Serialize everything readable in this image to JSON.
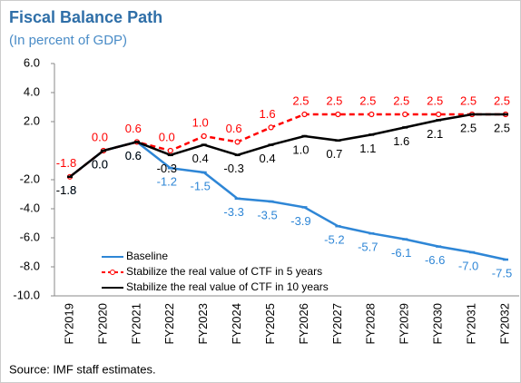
{
  "chart_data": {
    "type": "line",
    "title": "Fiscal Balance Path",
    "subtitle": "(In percent of GDP)",
    "source": "Source: IMF staff estimates.",
    "categories": [
      "FY2019",
      "FY2020",
      "FY2021",
      "FY2022",
      "FY2023",
      "FY2024",
      "FY2025",
      "FY2026",
      "FY2027",
      "FY2028",
      "FY2029",
      "FY2030",
      "FY2031",
      "FY2032"
    ],
    "series": [
      {
        "name": "Baseline",
        "color": "#2e86d6",
        "line_style": "solid",
        "label_position": "below",
        "values": [
          -1.8,
          0.0,
          0.6,
          -1.2,
          -1.5,
          -3.3,
          -3.5,
          -3.9,
          -5.2,
          -5.7,
          -6.1,
          -6.6,
          -7.0,
          -7.5
        ],
        "value_labels": [
          "-1.8",
          "0.0",
          "0.6",
          "-1.2",
          "-1.5",
          "-3.3",
          "-3.5",
          "-3.9",
          "-5.2",
          "-5.7",
          "-6.1",
          "-6.6",
          "-7.0",
          "-7.5"
        ]
      },
      {
        "name": "Stabilize the real value of CTF in 5 years",
        "color": "#ff0000",
        "line_style": "dashed",
        "label_position": "above",
        "values": [
          -1.8,
          0.0,
          0.6,
          0.0,
          1.0,
          0.6,
          1.6,
          2.5,
          2.5,
          2.5,
          2.5,
          2.5,
          2.5,
          2.5
        ],
        "value_labels": [
          "-1.8",
          "0.0",
          "0.6",
          "0.0",
          "1.0",
          "0.6",
          "1.6",
          "2.5",
          "2.5",
          "2.5",
          "2.5",
          "2.5",
          "2.5",
          "2.5"
        ]
      },
      {
        "name": "Stabilize the real value of CTF in 10 years",
        "color": "#000000",
        "line_style": "solid",
        "label_position": "below",
        "values": [
          -1.8,
          0.0,
          0.6,
          -0.3,
          0.4,
          -0.3,
          0.4,
          1.0,
          0.7,
          1.1,
          1.6,
          2.1,
          2.5,
          2.5
        ],
        "value_labels": [
          "-1.8",
          "0.0",
          "0.6",
          "-0.3",
          "0.4",
          "-0.3",
          "0.4",
          "1.0",
          "0.7",
          "1.1",
          "1.6",
          "2.1",
          "2.5",
          "2.5"
        ]
      }
    ],
    "ylim": [
      -10,
      6
    ],
    "yticks": [
      {
        "value": 6,
        "label": "6.0"
      },
      {
        "value": 4,
        "label": "4.0"
      },
      {
        "value": 2,
        "label": "2.0"
      },
      {
        "value": -2,
        "label": "-2.0"
      },
      {
        "value": -4,
        "label": "-4.0"
      },
      {
        "value": -6,
        "label": "-6.0"
      },
      {
        "value": -8,
        "label": "-8.0"
      },
      {
        "value": -10,
        "label": "-10.0"
      }
    ],
    "grid": false
  }
}
